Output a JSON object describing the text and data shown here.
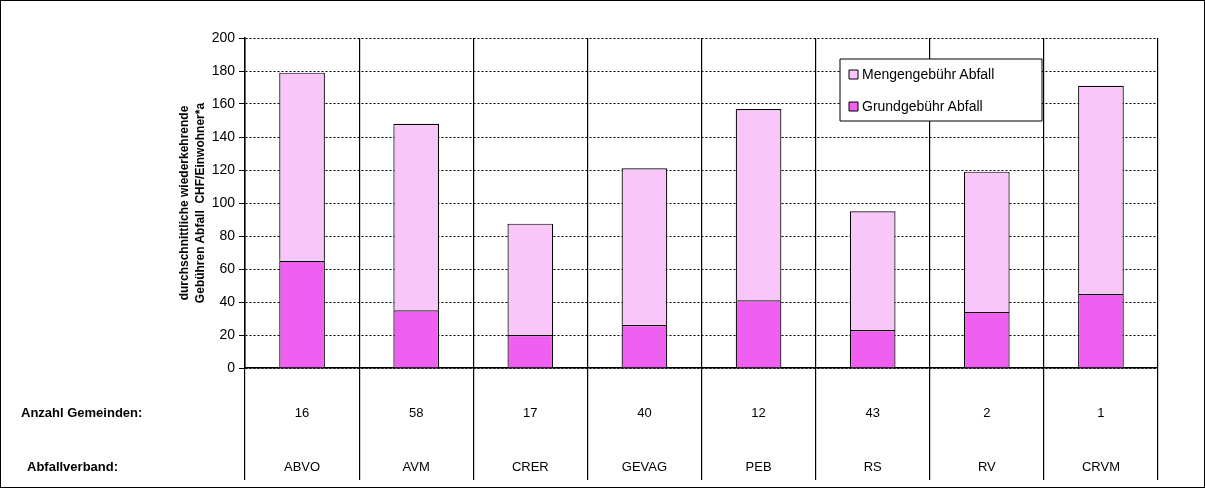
{
  "chart_data": {
    "type": "bar",
    "stacked": true,
    "ylabel": "durchschnittliche wiederkehrende\nGebühren Abfall  CHF/Einwohner*a",
    "categories": [
      "ABVO",
      "AVM",
      "CRER",
      "GEVAG",
      "PEB",
      "RS",
      "RV",
      "CRVM"
    ],
    "series": [
      {
        "name": "Grundgebühr Abfall",
        "color": "#f060f0",
        "values": [
          65,
          35,
          20,
          26,
          41,
          23,
          34,
          45
        ]
      },
      {
        "name": "Mengengebühr Abfall",
        "color": "#f9c6f9",
        "values": [
          114,
          113,
          67.5,
          95,
          116,
          72,
          85,
          126
        ]
      }
    ],
    "ylim": [
      0,
      200
    ],
    "yticks": [
      0,
      20,
      40,
      60,
      80,
      100,
      120,
      140,
      160,
      180,
      200
    ],
    "grid": true,
    "legend": "top right",
    "annotations": [
      "Anzahl Gemeinden:",
      "Abfallverband:",
      "16",
      "58",
      "17",
      "40",
      "12",
      "43",
      "2",
      "1"
    ]
  }
}
